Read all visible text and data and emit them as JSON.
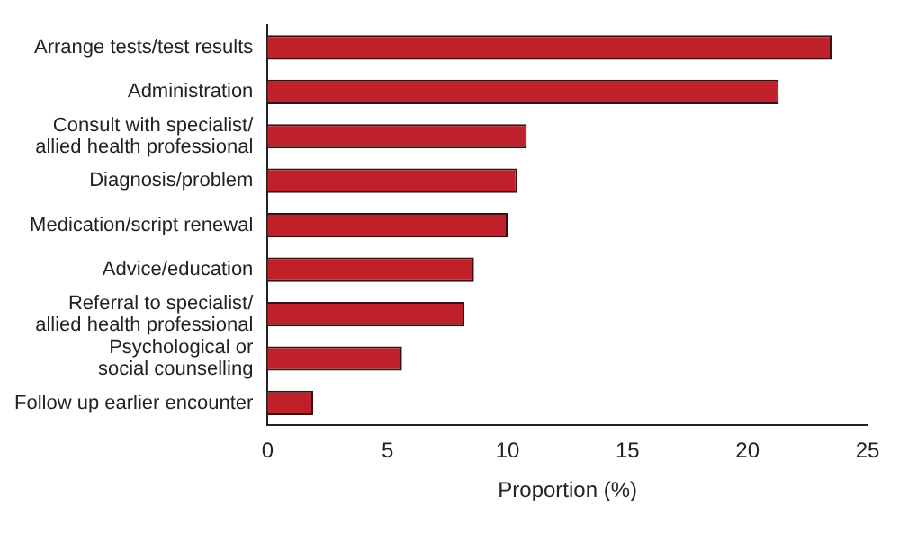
{
  "chart_data": {
    "type": "bar",
    "orientation": "horizontal",
    "categories": [
      "Arrange tests/test results",
      "Administration",
      "Consult with specialist/\nallied health professional",
      "Diagnosis/problem",
      "Medication/script renewal",
      "Advice/education",
      "Referral to specialist/\nallied health professional",
      "Psychological or\nsocial counselling",
      "Follow up earlier encounter"
    ],
    "values": [
      23.5,
      21.3,
      10.8,
      10.4,
      10.0,
      8.6,
      8.2,
      5.6,
      1.9
    ],
    "color": "#c0202a",
    "xlabel": "Proportion (%)",
    "xlim": [
      0,
      25
    ],
    "xticks": [
      0,
      5,
      10,
      15,
      20,
      25
    ],
    "grid": false,
    "legend": false
  }
}
